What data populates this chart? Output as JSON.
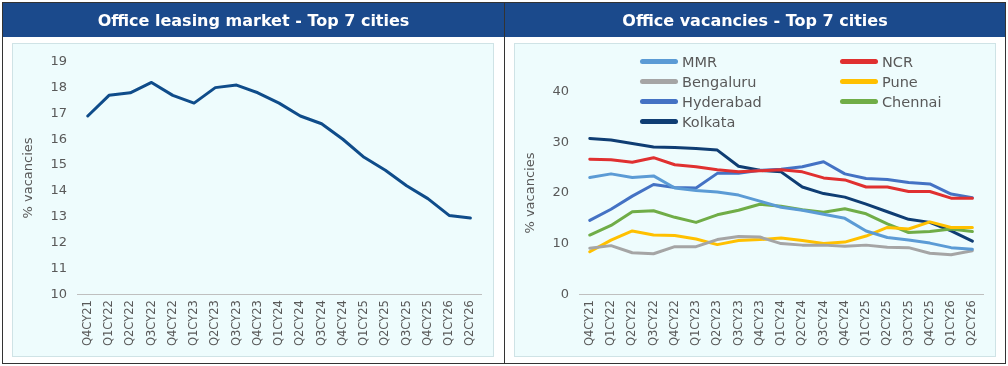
{
  "chart_data": [
    {
      "type": "line",
      "title": "Office leasing market - Top 7 cities",
      "ylabel": "% vacancies",
      "categories": [
        "Q4CY21",
        "Q1CY22",
        "Q2CY22",
        "Q3CY22",
        "Q4CY22",
        "Q1CY23",
        "Q2CY23",
        "Q3CY23",
        "Q4CY23",
        "Q1CY24",
        "Q2CY24",
        "Q3CY24",
        "Q4CY24",
        "Q1CY25",
        "Q2CY25",
        "Q3CY25",
        "Q4CY25",
        "Q1CY26",
        "Q2CY26"
      ],
      "series": [
        {
          "color": "#0f4c8a",
          "values": [
            16.9,
            17.7,
            17.8,
            18.2,
            17.7,
            17.4,
            18.0,
            18.1,
            17.8,
            17.4,
            16.9,
            16.6,
            16.0,
            15.3,
            14.8,
            14.2,
            13.7,
            13.05,
            12.95
          ]
        }
      ],
      "ylim": [
        10,
        19
      ],
      "yticks": [
        10,
        11,
        12,
        13,
        14,
        15,
        16,
        17,
        18,
        19
      ],
      "grid": false,
      "legend": false
    },
    {
      "type": "line",
      "title": "Office vacancies - Top 7 cities",
      "ylabel": "% vacancies",
      "categories": [
        "Q4CY21",
        "Q1CY22",
        "Q2CY22",
        "Q3CY22",
        "Q4CY22",
        "Q1CY23",
        "Q2CY23",
        "Q3CY23",
        "Q4CY23",
        "Q1CY24",
        "Q2CY24",
        "Q3CY24",
        "Q4CY24",
        "Q1CY25",
        "Q2CY25",
        "Q3CY25",
        "Q4CY25",
        "Q1CY26",
        "Q2CY26"
      ],
      "series": [
        {
          "name": "MMR",
          "color": "#5b9bd5",
          "values": [
            23.1,
            23.8,
            23.1,
            23.4,
            21.0,
            20.5,
            20.2,
            19.6,
            18.4,
            17.2,
            16.6,
            15.8,
            15.0,
            12.5,
            11.2,
            10.7,
            10.1,
            9.2,
            8.9
          ]
        },
        {
          "name": "NCR",
          "color": "#e03030",
          "values": [
            26.7,
            26.6,
            26.1,
            27.0,
            25.6,
            25.2,
            24.6,
            24.2,
            24.4,
            24.6,
            24.2,
            23.0,
            22.6,
            21.2,
            21.2,
            20.3,
            20.3,
            19.0,
            19.0
          ]
        },
        {
          "name": "Bengaluru",
          "color": "#a5a5a5",
          "values": [
            9.1,
            9.6,
            8.2,
            8.0,
            9.4,
            9.4,
            10.8,
            11.4,
            11.3,
            10.0,
            9.7,
            9.7,
            9.5,
            9.7,
            9.3,
            9.2,
            8.1,
            7.8,
            8.6
          ]
        },
        {
          "name": "Pune",
          "color": "#ffc000",
          "values": [
            8.4,
            10.7,
            12.5,
            11.7,
            11.6,
            10.9,
            9.8,
            10.6,
            10.8,
            11.1,
            10.6,
            10.0,
            10.3,
            11.5,
            13.2,
            12.9,
            14.3,
            13.2,
            13.2
          ]
        },
        {
          "name": "Hyderabad",
          "color": "#4472c4",
          "values": [
            14.6,
            16.8,
            19.4,
            21.7,
            21.1,
            21.0,
            23.9,
            23.9,
            24.5,
            24.7,
            25.2,
            26.2,
            23.8,
            22.9,
            22.7,
            22.1,
            21.8,
            19.8,
            19.1
          ]
        },
        {
          "name": "Chennai",
          "color": "#70ad47",
          "values": [
            11.7,
            13.6,
            16.3,
            16.5,
            15.2,
            14.2,
            15.7,
            16.6,
            17.8,
            17.4,
            16.7,
            16.2,
            16.9,
            15.9,
            13.9,
            12.2,
            12.4,
            12.9,
            12.4
          ]
        },
        {
          "name": "Kolkata",
          "color": "#0f3d73",
          "values": [
            30.8,
            30.5,
            29.8,
            29.1,
            29.0,
            28.8,
            28.5,
            25.3,
            24.5,
            24.2,
            21.2,
            19.9,
            19.2,
            17.8,
            16.3,
            14.8,
            14.2,
            12.5,
            10.5
          ]
        }
      ],
      "ylim": [
        0,
        40
      ],
      "yticks": [
        0,
        10,
        20,
        30,
        40
      ],
      "grid": false,
      "legend": "top"
    }
  ]
}
